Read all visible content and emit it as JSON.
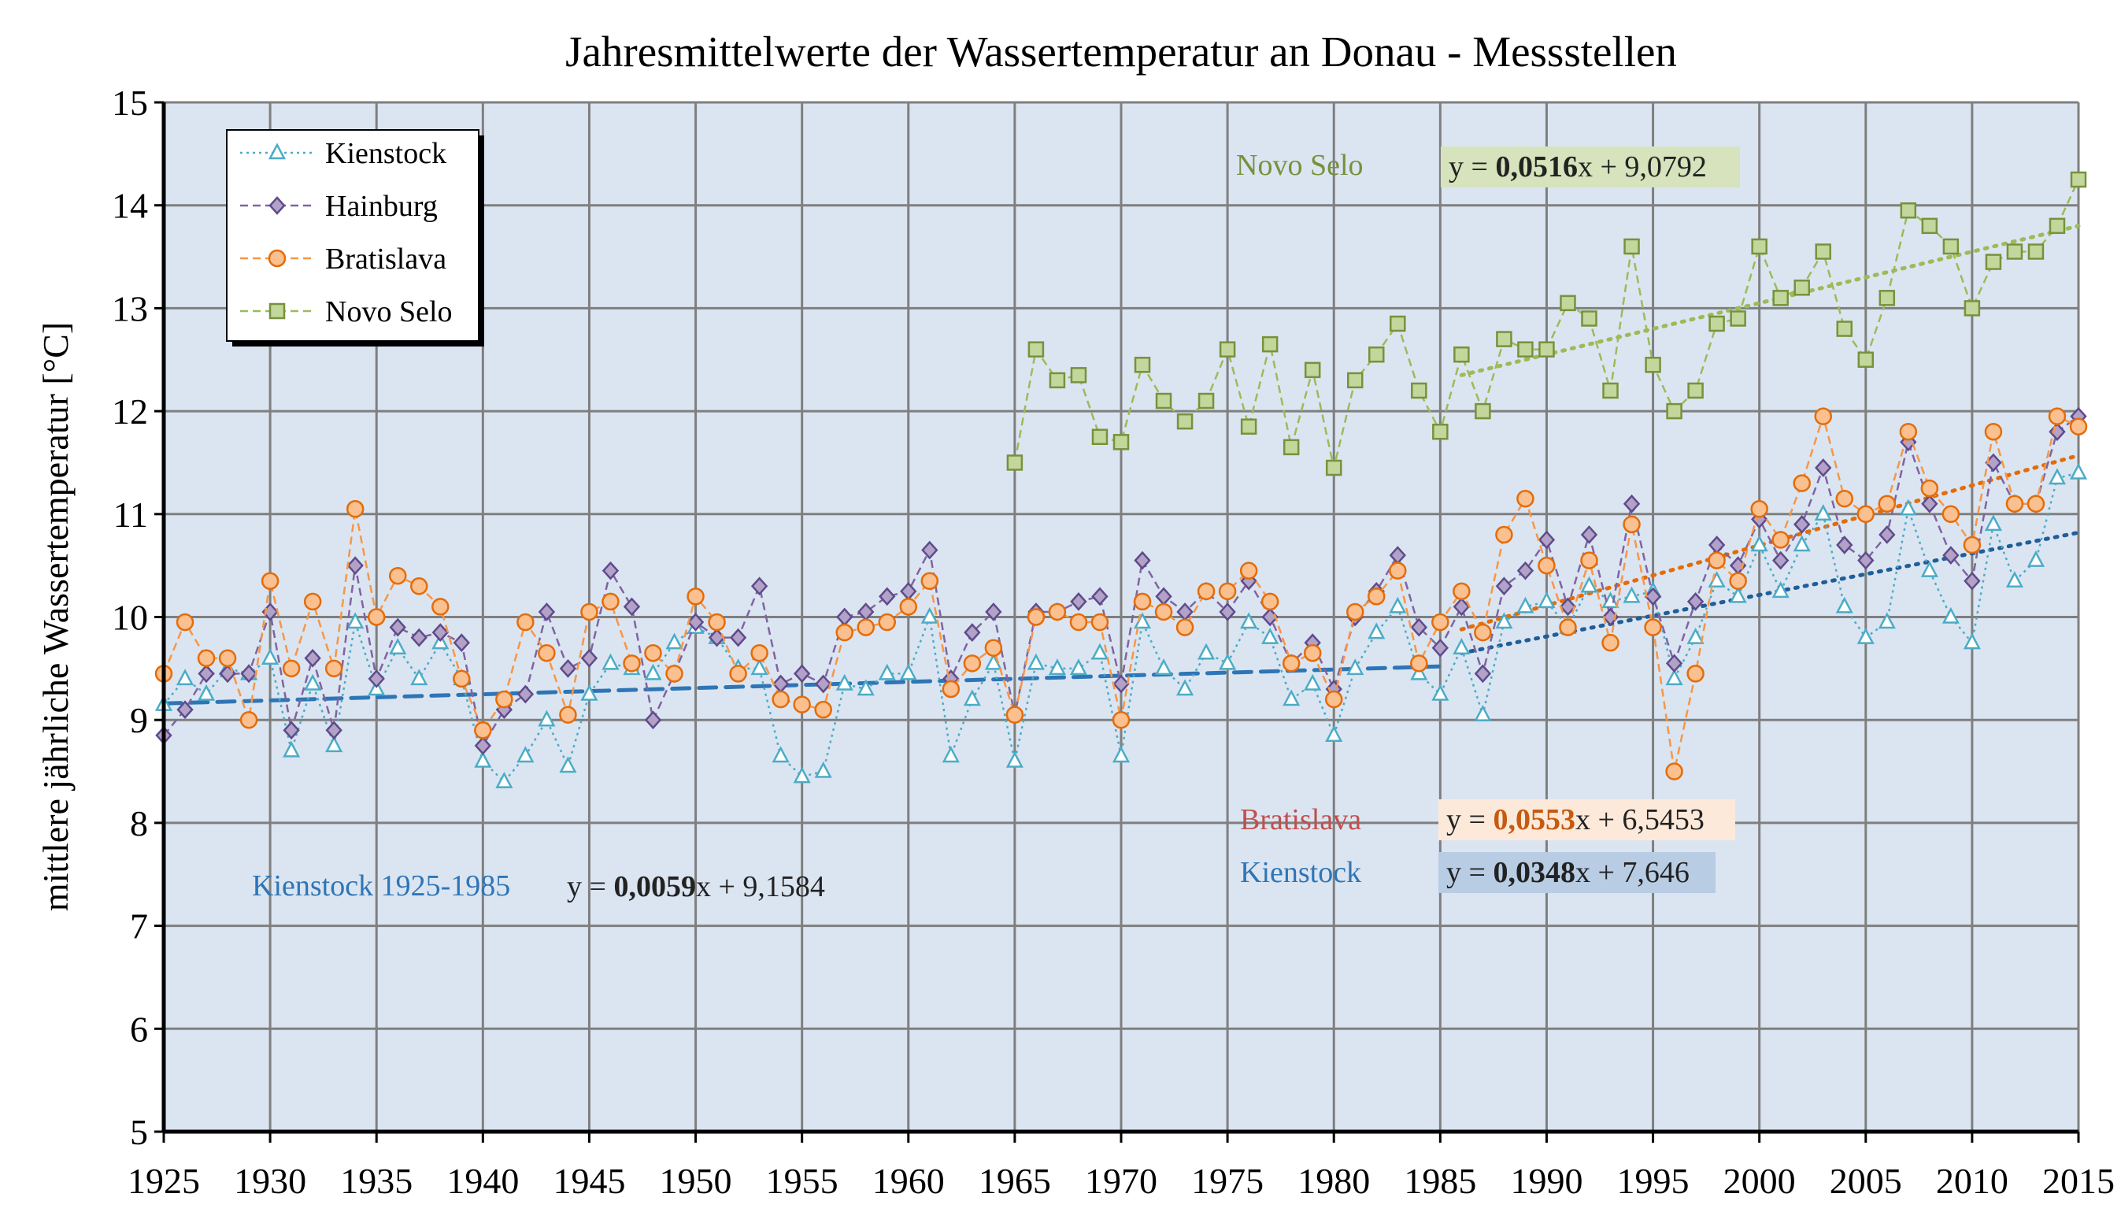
{
  "chart_data": {
    "type": "line",
    "title": "Jahresmittelwerte der Wassertemperatur an Donau - Messstellen",
    "xlabel": "",
    "ylabel": "mittlere jährliche Wassertemperatur  [°C]",
    "xlim": [
      1925,
      2015
    ],
    "ylim": [
      5,
      15
    ],
    "x_ticks": [
      1925,
      1930,
      1935,
      1940,
      1945,
      1950,
      1955,
      1960,
      1965,
      1970,
      1975,
      1980,
      1985,
      1990,
      1995,
      2000,
      2005,
      2010,
      2015
    ],
    "y_ticks": [
      5,
      6,
      7,
      8,
      9,
      10,
      11,
      12,
      13,
      14,
      15
    ],
    "grid": true,
    "legend_position": "top-left",
    "series": [
      {
        "name": "Kienstock",
        "color": "#4bacc6",
        "marker": "triangle",
        "linestyle": "dotted",
        "x": [
          1925,
          1926,
          1927,
          1928,
          1929,
          1930,
          1931,
          1932,
          1933,
          1934,
          1935,
          1936,
          1937,
          1938,
          1939,
          1940,
          1941,
          1942,
          1943,
          1944,
          1945,
          1946,
          1947,
          1948,
          1949,
          1950,
          1951,
          1952,
          1953,
          1954,
          1955,
          1956,
          1957,
          1958,
          1959,
          1960,
          1961,
          1962,
          1963,
          1964,
          1965,
          1966,
          1967,
          1968,
          1969,
          1970,
          1971,
          1972,
          1973,
          1974,
          1975,
          1976,
          1977,
          1978,
          1979,
          1980,
          1981,
          1982,
          1983,
          1984,
          1985,
          1986,
          1987,
          1988,
          1989,
          1990,
          1991,
          1992,
          1993,
          1994,
          1995,
          1996,
          1997,
          1998,
          1999,
          2000,
          2001,
          2002,
          2003,
          2004,
          2005,
          2006,
          2007,
          2008,
          2009,
          2010,
          2011,
          2012,
          2013,
          2014,
          2015
        ],
        "values": [
          9.15,
          9.4,
          9.25,
          9.5,
          9.45,
          9.6,
          8.7,
          9.35,
          8.75,
          9.95,
          9.3,
          9.7,
          9.4,
          9.75,
          9.4,
          8.6,
          8.4,
          8.65,
          9.0,
          8.55,
          9.25,
          9.55,
          9.5,
          9.45,
          9.75,
          9.9,
          9.8,
          9.5,
          9.5,
          8.65,
          8.45,
          8.5,
          9.35,
          9.3,
          9.45,
          9.45,
          10.0,
          8.65,
          9.2,
          9.55,
          8.6,
          9.55,
          9.5,
          9.5,
          9.65,
          8.65,
          9.95,
          9.5,
          9.3,
          9.65,
          9.55,
          9.95,
          9.8,
          9.2,
          9.35,
          8.85,
          9.5,
          9.85,
          10.1,
          9.45,
          9.25,
          9.7,
          9.05,
          9.95,
          10.1,
          10.15,
          9.9,
          10.3,
          10.15,
          10.2,
          10.25,
          9.4,
          9.8,
          10.35,
          10.2,
          10.7,
          10.25,
          10.7,
          11.0,
          10.1,
          9.8,
          9.95,
          11.05,
          10.45,
          10.0,
          9.75,
          10.9,
          10.35,
          10.55,
          11.35,
          11.4
        ]
      },
      {
        "name": "Hainburg",
        "color": "#8064a2",
        "marker": "diamond",
        "linestyle": "dashed",
        "x": [
          1925,
          1926,
          1927,
          1928,
          1929,
          1930,
          1931,
          1932,
          1933,
          1934,
          1935,
          1936,
          1937,
          1938,
          1939,
          1940,
          1941,
          1942,
          1943,
          1944,
          1945,
          1946,
          1947,
          1948,
          1949,
          1950,
          1951,
          1952,
          1953,
          1954,
          1955,
          1956,
          1957,
          1958,
          1959,
          1960,
          1961,
          1962,
          1963,
          1964,
          1965,
          1966,
          1967,
          1968,
          1969,
          1970,
          1971,
          1972,
          1973,
          1974,
          1975,
          1976,
          1977,
          1978,
          1979,
          1980,
          1981,
          1982,
          1983,
          1984,
          1985,
          1986,
          1987,
          1988,
          1989,
          1990,
          1991,
          1992,
          1993,
          1994,
          1995,
          1996,
          1997,
          1998,
          1999,
          2000,
          2001,
          2002,
          2003,
          2004,
          2005,
          2006,
          2007,
          2008,
          2009,
          2010,
          2011,
          2012,
          2013,
          2014,
          2015
        ],
        "values": [
          8.85,
          9.1,
          9.45,
          9.45,
          9.45,
          10.05,
          8.9,
          9.6,
          8.9,
          10.5,
          9.4,
          9.9,
          9.8,
          9.85,
          9.75,
          8.75,
          9.1,
          9.25,
          10.05,
          9.5,
          9.6,
          10.45,
          10.1,
          9.0,
          9.45,
          9.95,
          9.8,
          9.8,
          10.3,
          9.35,
          9.45,
          9.35,
          10.0,
          10.05,
          10.2,
          10.25,
          10.65,
          9.4,
          9.85,
          10.05,
          9.05,
          10.05,
          10.05,
          10.15,
          10.2,
          9.35,
          10.55,
          10.2,
          10.05,
          10.25,
          10.05,
          10.35,
          10.0,
          9.55,
          9.75,
          9.3,
          10.0,
          10.25,
          10.6,
          9.9,
          9.7,
          10.1,
          9.45,
          10.3,
          10.45,
          10.75,
          10.1,
          10.8,
          10.0,
          11.1,
          10.2,
          9.55,
          10.15,
          10.7,
          10.5,
          10.95,
          10.55,
          10.9,
          11.45,
          10.7,
          10.55,
          10.8,
          11.7,
          11.1,
          10.6,
          10.35,
          11.5,
          11.1,
          11.1,
          11.8,
          11.95
        ]
      },
      {
        "name": "Bratislava",
        "color": "#f79646",
        "marker": "circle",
        "linestyle": "dashed",
        "x": [
          1925,
          1926,
          1927,
          1928,
          1929,
          1930,
          1931,
          1932,
          1933,
          1934,
          1935,
          1936,
          1937,
          1938,
          1939,
          1940,
          1941,
          1942,
          1943,
          1944,
          1945,
          1946,
          1947,
          1948,
          1949,
          1950,
          1951,
          1952,
          1953,
          1954,
          1955,
          1956,
          1957,
          1958,
          1959,
          1960,
          1961,
          1962,
          1963,
          1964,
          1965,
          1966,
          1967,
          1968,
          1969,
          1970,
          1971,
          1972,
          1973,
          1974,
          1975,
          1976,
          1977,
          1978,
          1979,
          1980,
          1981,
          1982,
          1983,
          1984,
          1985,
          1986,
          1987,
          1988,
          1989,
          1990,
          1991,
          1992,
          1993,
          1994,
          1995,
          1996,
          1997,
          1998,
          1999,
          2000,
          2001,
          2002,
          2003,
          2004,
          2005,
          2006,
          2007,
          2008,
          2009,
          2010,
          2011,
          2012,
          2013,
          2014,
          2015
        ],
        "values": [
          9.45,
          9.95,
          9.6,
          9.6,
          9.0,
          10.35,
          9.5,
          10.15,
          9.5,
          11.05,
          10.0,
          10.4,
          10.3,
          10.1,
          9.4,
          8.9,
          9.2,
          9.95,
          9.65,
          9.05,
          10.05,
          10.15,
          9.55,
          9.65,
          9.45,
          10.2,
          9.95,
          9.45,
          9.65,
          9.2,
          9.15,
          9.1,
          9.85,
          9.9,
          9.95,
          10.1,
          10.35,
          9.3,
          9.55,
          9.7,
          9.05,
          10.0,
          10.05,
          9.95,
          9.95,
          9.0,
          10.15,
          10.05,
          9.9,
          10.25,
          10.25,
          10.45,
          10.15,
          9.55,
          9.65,
          9.2,
          10.05,
          10.2,
          10.45,
          9.55,
          9.95,
          10.25,
          9.85,
          10.8,
          11.15,
          10.5,
          9.9,
          10.55,
          9.75,
          10.9,
          9.9,
          8.5,
          9.45,
          10.55,
          10.35,
          11.05,
          10.75,
          11.3,
          11.95,
          11.15,
          11.0,
          11.1,
          11.8,
          11.25,
          11.0,
          10.7,
          11.8,
          11.1,
          11.1,
          11.95,
          11.85
        ]
      },
      {
        "name": "Novo Selo",
        "color": "#9bbb59",
        "marker": "square",
        "linestyle": "dashed",
        "x": [
          1965,
          1966,
          1967,
          1968,
          1969,
          1970,
          1971,
          1972,
          1973,
          1974,
          1975,
          1976,
          1977,
          1978,
          1979,
          1980,
          1981,
          1982,
          1983,
          1984,
          1985,
          1986,
          1987,
          1988,
          1989,
          1990,
          1991,
          1992,
          1993,
          1994,
          1995,
          1996,
          1997,
          1998,
          1999,
          2000,
          2001,
          2002,
          2003,
          2004,
          2005,
          2006,
          2007,
          2008,
          2009,
          2010,
          2011,
          2012,
          2013,
          2014,
          2015
        ],
        "values": [
          11.5,
          12.6,
          12.3,
          12.35,
          11.75,
          11.7,
          12.45,
          12.1,
          11.9,
          12.1,
          12.6,
          11.85,
          12.65,
          11.65,
          12.4,
          11.45,
          12.3,
          12.55,
          12.85,
          12.2,
          11.8,
          12.55,
          12.0,
          12.7,
          12.6,
          12.6,
          13.05,
          12.9,
          12.2,
          13.6,
          12.45,
          12.0,
          12.2,
          12.85,
          12.9,
          13.6,
          13.1,
          13.2,
          13.55,
          12.8,
          12.5,
          13.1,
          13.95,
          13.8,
          13.6,
          13.0,
          13.45,
          13.55,
          13.55,
          13.8,
          14.25
        ]
      }
    ],
    "trendlines": [
      {
        "series": "Novo Selo",
        "label": "Novo Selo",
        "equation": "y = 0,0516x + 9,0792",
        "slope_text": "0,0516",
        "eq_prefix": "y = ",
        "eq_suffix": "x + 9,0792",
        "x_range": [
          1986,
          2015
        ],
        "y_range": [
          12.35,
          13.8
        ],
        "color": "#9bbb59",
        "linestyle": "dotted",
        "box_color": "#d6e3bc"
      },
      {
        "series": "Bratislava",
        "label": "Bratislava",
        "equation": "y = 0,0553x + 6,5453",
        "slope_text": "0,0553",
        "eq_prefix": "y = ",
        "eq_suffix": "x + 6,5453",
        "x_range": [
          1986,
          2015
        ],
        "y_range": [
          9.88,
          11.57
        ],
        "color": "#e36c09",
        "linestyle": "dotted",
        "box_color": "#fde9d9"
      },
      {
        "series": "Kienstock",
        "label": "Kienstock",
        "equation": "y = 0,0348x + 7,646",
        "slope_text": "0,0348",
        "eq_prefix": "y = ",
        "eq_suffix": "x + 7,646",
        "x_range": [
          1986,
          2015
        ],
        "y_range": [
          9.65,
          10.82
        ],
        "color": "#1f5e99",
        "linestyle": "dotted",
        "box_color": "#b8cce4"
      },
      {
        "series": "Kienstock",
        "label": "Kienstock 1925-1985",
        "equation": "y = 0,0059x + 9,1584",
        "slope_text": "0,0059",
        "eq_prefix": "y = ",
        "eq_suffix": "x + 9,1584",
        "x_range": [
          1925,
          1985
        ],
        "y_range": [
          9.16,
          9.52
        ],
        "color": "#2e75b6",
        "linestyle": "dashed",
        "box_color": ""
      }
    ]
  }
}
